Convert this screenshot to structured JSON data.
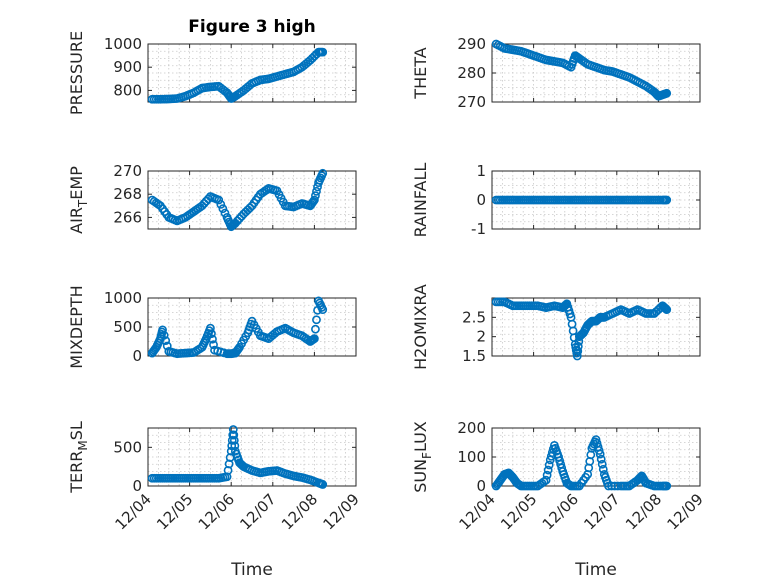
{
  "figure": {
    "title": "Figure 3 high",
    "xlabel": "Time"
  },
  "chart_data": [
    {
      "type": "scatter",
      "id": "pressure",
      "ylabel": "PRESSURE",
      "ylim": [
        750,
        1000
      ],
      "yticks": [
        800,
        900,
        1000
      ],
      "xticks": [
        "12/04",
        "12/05",
        "12/06",
        "12/07",
        "12/08",
        "12/09"
      ],
      "xlim": [
        0,
        5
      ],
      "xticklabels_shown": false,
      "title": "Figure 3 high",
      "marker_color": "#0072BD",
      "grid": true,
      "series": [
        {
          "x": [
            0.1,
            0.3,
            0.5,
            0.7,
            0.9,
            1.1,
            1.3,
            1.5,
            1.7,
            1.9,
            2.0,
            2.1,
            2.3,
            2.5,
            2.7,
            2.9,
            3.1,
            3.3,
            3.5,
            3.7,
            3.9,
            4.1,
            4.2
          ],
          "y": [
            762,
            762,
            763,
            765,
            775,
            790,
            810,
            815,
            818,
            790,
            765,
            775,
            800,
            830,
            845,
            850,
            860,
            870,
            880,
            900,
            930,
            965,
            965
          ]
        }
      ]
    },
    {
      "type": "scatter",
      "id": "theta",
      "ylabel": "THETA",
      "ylim": [
        270,
        290
      ],
      "yticks": [
        270,
        280,
        290
      ],
      "xticks": [
        "12/04",
        "12/05",
        "12/06",
        "12/07",
        "12/08",
        "12/09"
      ],
      "xlim": [
        0,
        5
      ],
      "xticklabels_shown": false,
      "marker_color": "#0072BD",
      "grid": true,
      "series": [
        {
          "x": [
            0.1,
            0.3,
            0.5,
            0.7,
            0.9,
            1.1,
            1.3,
            1.5,
            1.7,
            1.9,
            2.0,
            2.1,
            2.3,
            2.5,
            2.7,
            2.9,
            3.1,
            3.3,
            3.5,
            3.7,
            3.9,
            4.0,
            4.1,
            4.2
          ],
          "y": [
            290,
            288.5,
            288,
            287.5,
            286.5,
            285.5,
            284.5,
            284,
            283.5,
            282,
            286,
            285,
            283,
            282,
            281,
            280.5,
            279.5,
            278.5,
            277,
            275.5,
            273.5,
            272,
            272.5,
            273
          ]
        }
      ]
    },
    {
      "type": "scatter",
      "id": "air_temp",
      "ylabel": "AIR_TEMP",
      "ylabel_main": "AIR",
      "ylabel_sub": "T",
      "ylabel_tail": "EMP",
      "ylim": [
        265,
        270
      ],
      "yticks": [
        266,
        268,
        270
      ],
      "xticks": [
        "12/04",
        "12/05",
        "12/06",
        "12/07",
        "12/08",
        "12/09"
      ],
      "xlim": [
        0,
        5
      ],
      "xticklabels_shown": false,
      "marker_color": "#0072BD",
      "grid": true,
      "series": [
        {
          "x": [
            0.1,
            0.3,
            0.5,
            0.7,
            0.9,
            1.1,
            1.3,
            1.5,
            1.7,
            1.9,
            2.0,
            2.1,
            2.3,
            2.5,
            2.7,
            2.9,
            3.1,
            3.3,
            3.5,
            3.7,
            3.9,
            4.0,
            4.1,
            4.2
          ],
          "y": [
            267.5,
            267,
            266,
            265.7,
            266,
            266.5,
            267,
            267.8,
            267.5,
            266,
            265.2,
            265.5,
            266.3,
            267,
            268,
            268.5,
            268.3,
            267,
            266.9,
            267.2,
            267,
            267.5,
            269,
            269.8
          ]
        }
      ]
    },
    {
      "type": "scatter",
      "id": "rainfall",
      "ylabel": "RAINFALL",
      "ylim": [
        -1,
        1
      ],
      "yticks": [
        -1,
        0,
        1
      ],
      "xticks": [
        "12/04",
        "12/05",
        "12/06",
        "12/07",
        "12/08",
        "12/09"
      ],
      "xlim": [
        0,
        5
      ],
      "xticklabels_shown": false,
      "marker_color": "#0072BD",
      "grid": true,
      "series": [
        {
          "x": [
            0.1,
            0.3,
            0.5,
            0.7,
            0.9,
            1.1,
            1.3,
            1.5,
            1.7,
            1.9,
            2.1,
            2.3,
            2.5,
            2.7,
            2.9,
            3.1,
            3.3,
            3.5,
            3.7,
            3.9,
            4.1,
            4.2
          ],
          "y": [
            0,
            0,
            0,
            0,
            0,
            0,
            0,
            0,
            0,
            0,
            0,
            0,
            0,
            0,
            0,
            0,
            0,
            0,
            0,
            0,
            0,
            0
          ]
        }
      ]
    },
    {
      "type": "scatter",
      "id": "mixdepth",
      "ylabel": "MIXDEPTH",
      "ylim": [
        0,
        1000
      ],
      "yticks": [
        0,
        500,
        1000
      ],
      "xticks": [
        "12/04",
        "12/05",
        "12/06",
        "12/07",
        "12/08",
        "12/09"
      ],
      "xlim": [
        0,
        5
      ],
      "xticklabels_shown": false,
      "marker_color": "#0072BD",
      "grid": true,
      "series": [
        {
          "x": [
            0.1,
            0.2,
            0.3,
            0.35,
            0.5,
            0.7,
            0.9,
            1.1,
            1.3,
            1.4,
            1.5,
            1.6,
            1.9,
            2.0,
            2.1,
            2.2,
            2.4,
            2.5,
            2.7,
            2.9,
            3.1,
            3.3,
            3.5,
            3.7,
            3.9,
            4.0,
            4.1,
            4.2
          ],
          "y": [
            50,
            150,
            300,
            450,
            80,
            40,
            50,
            60,
            150,
            300,
            480,
            100,
            40,
            40,
            50,
            150,
            400,
            600,
            350,
            300,
            420,
            480,
            400,
            350,
            250,
            300,
            950,
            800
          ]
        }
      ]
    },
    {
      "type": "scatter",
      "id": "h2omixra",
      "ylabel": "H2OMIXRA",
      "ylim": [
        1.5,
        3
      ],
      "yticks": [
        1.5,
        2,
        2.5
      ],
      "xticks": [
        "12/04",
        "12/05",
        "12/06",
        "12/07",
        "12/08",
        "12/09"
      ],
      "xlim": [
        0,
        5
      ],
      "xticklabels_shown": false,
      "marker_color": "#0072BD",
      "grid": true,
      "series": [
        {
          "x": [
            0.1,
            0.3,
            0.5,
            0.7,
            0.9,
            1.1,
            1.3,
            1.5,
            1.7,
            1.8,
            1.9,
            2.0,
            2.05,
            2.1,
            2.2,
            2.3,
            2.4,
            2.5,
            2.6,
            2.7,
            2.9,
            3.1,
            3.3,
            3.5,
            3.7,
            3.9,
            4.1,
            4.2
          ],
          "y": [
            2.9,
            2.9,
            2.8,
            2.8,
            2.8,
            2.8,
            2.75,
            2.8,
            2.75,
            2.85,
            2.5,
            1.8,
            1.5,
            2.0,
            2.1,
            2.3,
            2.4,
            2.4,
            2.5,
            2.5,
            2.6,
            2.7,
            2.6,
            2.7,
            2.6,
            2.6,
            2.8,
            2.7
          ]
        }
      ]
    },
    {
      "type": "scatter",
      "id": "terr_msl",
      "ylabel": "TERR_MSL",
      "ylabel_main": "TERR",
      "ylabel_sub": "M",
      "ylabel_tail": "SL",
      "ylim": [
        0,
        750
      ],
      "yticks": [
        0,
        500
      ],
      "xticks": [
        "12/04",
        "12/05",
        "12/06",
        "12/07",
        "12/08",
        "12/09"
      ],
      "xlim": [
        0,
        5
      ],
      "xticklabels_shown": true,
      "xlabel": "Time",
      "marker_color": "#0072BD",
      "grid": true,
      "series": [
        {
          "x": [
            0.1,
            0.3,
            0.5,
            0.7,
            0.9,
            1.1,
            1.3,
            1.5,
            1.7,
            1.9,
            2.0,
            2.05,
            2.1,
            2.2,
            2.3,
            2.5,
            2.7,
            2.9,
            3.1,
            3.3,
            3.5,
            3.7,
            3.9,
            4.1,
            4.2
          ],
          "y": [
            100,
            100,
            100,
            100,
            100,
            100,
            100,
            100,
            100,
            120,
            450,
            730,
            450,
            300,
            250,
            200,
            170,
            190,
            200,
            160,
            130,
            110,
            80,
            40,
            20
          ]
        }
      ]
    },
    {
      "type": "scatter",
      "id": "sun_flux",
      "ylabel": "SUN_FLUX",
      "ylabel_main": "SUN",
      "ylabel_sub": "F",
      "ylabel_tail": "LUX",
      "ylim": [
        0,
        200
      ],
      "yticks": [
        0,
        100,
        200
      ],
      "xticks": [
        "12/04",
        "12/05",
        "12/06",
        "12/07",
        "12/08",
        "12/09"
      ],
      "xlim": [
        0,
        5
      ],
      "xticklabels_shown": true,
      "xlabel": "Time",
      "marker_color": "#0072BD",
      "grid": true,
      "series": [
        {
          "x": [
            0.1,
            0.2,
            0.3,
            0.4,
            0.5,
            0.6,
            0.7,
            0.9,
            1.1,
            1.3,
            1.4,
            1.5,
            1.6,
            1.7,
            1.8,
            1.9,
            2.1,
            2.3,
            2.4,
            2.5,
            2.6,
            2.7,
            2.8,
            3.1,
            3.3,
            3.5,
            3.6,
            3.7,
            3.9,
            4.1,
            4.2
          ],
          "y": [
            0,
            20,
            40,
            45,
            30,
            10,
            0,
            0,
            0,
            20,
            90,
            140,
            100,
            50,
            10,
            0,
            0,
            40,
            130,
            160,
            110,
            40,
            0,
            0,
            0,
            20,
            35,
            10,
            0,
            0,
            0
          ]
        }
      ]
    }
  ]
}
